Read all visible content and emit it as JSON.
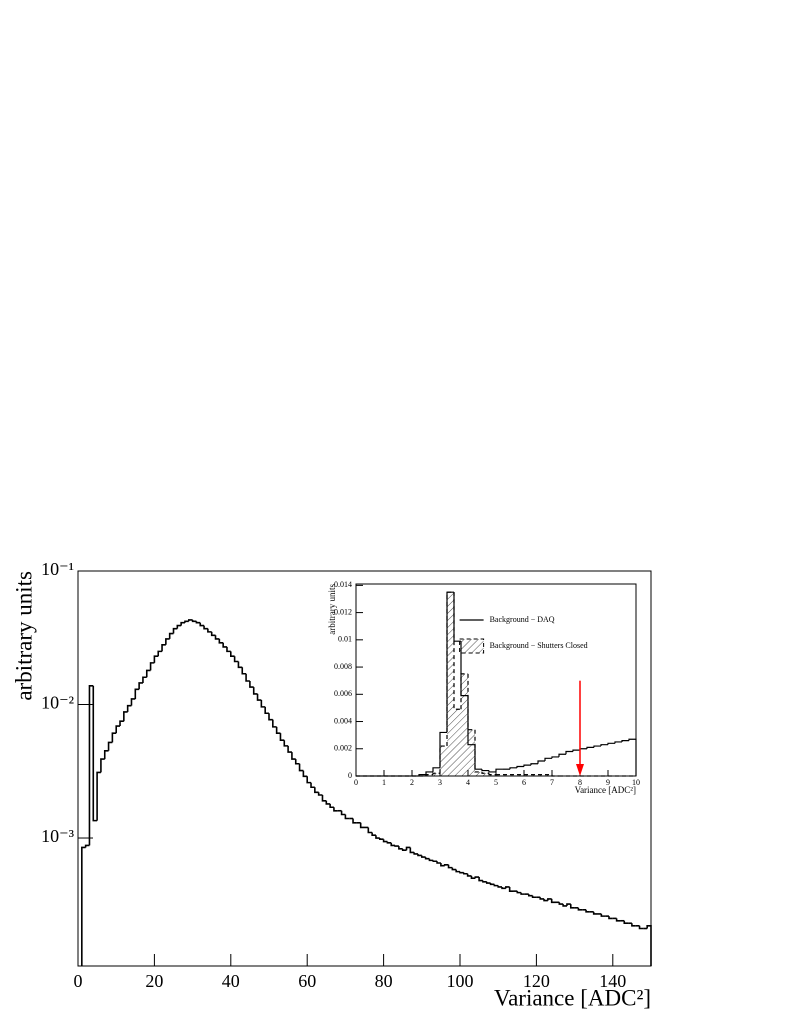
{
  "chart_data": [
    {
      "type": "histogram",
      "xlabel": "Variance [ADC²]",
      "ylabel": "arbitrary units",
      "xlim": [
        0,
        150
      ],
      "xticks": [
        0,
        20,
        40,
        60,
        80,
        100,
        120,
        140
      ],
      "ylim": [
        0.00011,
        0.1
      ],
      "log_y": true,
      "yticks": [
        {
          "value": 0.1,
          "label": "10⁻¹"
        },
        {
          "value": 0.01,
          "label": "10⁻²"
        },
        {
          "value": 0.001,
          "label": "10⁻³"
        }
      ],
      "bins": [
        1,
        2,
        3,
        4,
        5,
        6,
        7,
        8,
        9,
        10,
        11,
        12,
        13,
        14,
        15,
        16,
        17,
        18,
        19,
        20,
        21,
        22,
        23,
        24,
        25,
        26,
        27,
        28,
        29,
        30,
        31,
        32,
        33,
        34,
        35,
        36,
        37,
        38,
        39,
        40,
        41,
        42,
        43,
        44,
        45,
        46,
        47,
        48,
        49,
        50,
        51,
        52,
        53,
        54,
        55,
        56,
        57,
        58,
        59,
        60,
        61,
        62,
        63,
        64,
        65,
        66,
        67,
        68,
        69,
        70,
        71,
        72,
        73,
        74,
        75,
        76,
        77,
        78,
        79,
        80,
        81,
        82,
        83,
        84,
        85,
        86,
        87,
        88,
        89,
        90,
        91,
        92,
        93,
        94,
        95,
        96,
        97,
        98,
        99,
        100,
        101,
        102,
        103,
        104,
        105,
        106,
        107,
        108,
        109,
        110,
        111,
        112,
        113,
        114,
        115,
        116,
        117,
        118,
        119,
        120,
        121,
        122,
        123,
        124,
        125,
        126,
        127,
        128,
        129,
        130,
        131,
        132,
        133,
        134,
        135,
        136,
        137,
        138,
        139,
        140,
        141,
        142,
        143,
        144,
        145,
        146,
        147,
        148,
        149,
        150
      ],
      "series": [
        {
          "color": "#000000",
          "line_style": "solid",
          "values": [
            0.00085,
            0.00088,
            0.0138,
            0.00135,
            0.0031,
            0.0039,
            0.0045,
            0.0052,
            0.0061,
            0.0069,
            0.0075,
            0.0088,
            0.0098,
            0.011,
            0.013,
            0.0145,
            0.016,
            0.018,
            0.0205,
            0.023,
            0.025,
            0.028,
            0.031,
            0.034,
            0.037,
            0.039,
            0.041,
            0.042,
            0.043,
            0.042,
            0.041,
            0.039,
            0.037,
            0.035,
            0.033,
            0.031,
            0.029,
            0.027,
            0.025,
            0.023,
            0.021,
            0.019,
            0.017,
            0.015,
            0.0135,
            0.012,
            0.0108,
            0.0096,
            0.0086,
            0.0077,
            0.0068,
            0.0061,
            0.0054,
            0.0049,
            0.0044,
            0.0039,
            0.0036,
            0.0032,
            0.0029,
            0.0026,
            0.0024,
            0.0022,
            0.0021,
            0.0019,
            0.0018,
            0.0017,
            0.0016,
            0.0016,
            0.0015,
            0.0014,
            0.0014,
            0.0013,
            0.0013,
            0.0012,
            0.0012,
            0.0011,
            0.00105,
            0.001,
            0.00098,
            0.00094,
            0.00092,
            0.00088,
            0.00087,
            0.00083,
            0.00081,
            0.00085,
            0.00078,
            0.00076,
            0.00074,
            0.00072,
            0.0007,
            0.00068,
            0.00067,
            0.00065,
            0.00062,
            0.00063,
            0.0006,
            0.00058,
            0.00056,
            0.00055,
            0.00054,
            0.00052,
            0.0005,
            0.00051,
            0.00048,
            0.00047,
            0.00046,
            0.00045,
            0.00044,
            0.00043,
            0.00042,
            0.00043,
            0.0004,
            0.0004,
            0.00039,
            0.00038,
            0.00038,
            0.00037,
            0.00036,
            0.00036,
            0.00035,
            0.00034,
            0.00035,
            0.00033,
            0.00033,
            0.00032,
            0.00031,
            0.00032,
            0.0003,
            0.0003,
            0.00029,
            0.00029,
            0.00028,
            0.00028,
            0.00027,
            0.00027,
            0.00026,
            0.00026,
            0.00025,
            0.00025,
            0.00024,
            0.00024,
            0.00023,
            0.00023,
            0.00022,
            0.00022,
            0.00021,
            0.00021,
            0.00022
          ]
        }
      ]
    },
    {
      "type": "histogram",
      "xlabel": "Variance [ADC²]",
      "ylabel": "arbitrary units",
      "xlim": [
        0,
        10
      ],
      "xticks": [
        0,
        1,
        2,
        3,
        4,
        5,
        6,
        7,
        8,
        9,
        10
      ],
      "ylim": [
        0,
        0.0141
      ],
      "yticks": [
        0,
        0.002,
        0.004,
        0.006,
        0.008,
        0.01,
        0.012,
        0.014
      ],
      "legend": "top-right",
      "bins": [
        0,
        0.25,
        0.5,
        0.75,
        1,
        1.25,
        1.5,
        1.75,
        2,
        2.25,
        2.5,
        2.75,
        3,
        3.25,
        3.5,
        3.75,
        4,
        4.25,
        4.5,
        4.75,
        5,
        5.25,
        5.5,
        5.75,
        6,
        6.25,
        6.5,
        6.75,
        7,
        7.25,
        7.5,
        7.75,
        8,
        8.25,
        8.5,
        8.75,
        9,
        9.25,
        9.5,
        9.75,
        10
      ],
      "series": [
        {
          "name": "Background − DAQ",
          "color": "#000000",
          "line_style": "solid",
          "values": [
            0,
            0,
            0,
            0,
            0,
            0,
            0,
            0,
            0,
            0.0001,
            0.0003,
            0.0006,
            0.0032,
            0.0135,
            0.0099,
            0.0059,
            0.0023,
            0.0005,
            0.0004,
            0.0003,
            0.0005,
            0.0005,
            0.0006,
            0.0007,
            0.0008,
            0.0009,
            0.0011,
            0.0013,
            0.0014,
            0.0016,
            0.0018,
            0.0019,
            0.002,
            0.0021,
            0.0022,
            0.0023,
            0.0024,
            0.0025,
            0.0026,
            0.0027
          ]
        },
        {
          "name": "Background − Shutters Closed",
          "color": "#000000",
          "line_style": "dashed",
          "fill": "hatch",
          "values": [
            0,
            0,
            0,
            0,
            0,
            0,
            0,
            0,
            0,
            0,
            0.0001,
            0.0002,
            0.0022,
            0.0135,
            0.0049,
            0.0075,
            0.0034,
            0.0003,
            0.0002,
            0.0001,
            0.0001,
            0.0001,
            0.0001,
            0.0001,
            0.0001,
            0.0001,
            0.0001,
            0.0001,
            0,
            0,
            0,
            0,
            0,
            0,
            0,
            0,
            0,
            0,
            0,
            0
          ]
        }
      ],
      "arrow": {
        "x": 8,
        "y_start": 0.007,
        "y_end": 0,
        "color": "#ff0000"
      }
    }
  ]
}
